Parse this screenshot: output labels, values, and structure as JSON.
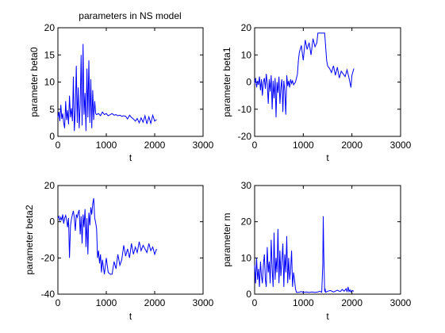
{
  "figure": {
    "title": "parameters in NS model",
    "line_color": "#0000ff",
    "axes_color": "#000000",
    "background": "#ffffff"
  },
  "chart_data": [
    {
      "type": "line",
      "title": "parameters in NS model",
      "xlabel": "t",
      "ylabel": "parameter beta0",
      "xlim": [
        0,
        3000
      ],
      "ylim": [
        0,
        20
      ],
      "xticks": [
        0,
        1000,
        2000,
        3000
      ],
      "yticks": [
        0,
        5,
        10,
        15,
        20
      ],
      "grid": false,
      "x": [
        0,
        20,
        40,
        60,
        80,
        100,
        120,
        140,
        160,
        180,
        200,
        220,
        240,
        260,
        280,
        300,
        320,
        340,
        360,
        380,
        400,
        420,
        440,
        460,
        480,
        500,
        520,
        540,
        560,
        580,
        600,
        620,
        640,
        660,
        680,
        700,
        720,
        740,
        760,
        780,
        800,
        840,
        880,
        920,
        960,
        1000,
        1040,
        1080,
        1120,
        1160,
        1200,
        1240,
        1280,
        1320,
        1360,
        1400,
        1440,
        1480,
        1520,
        1560,
        1600,
        1640,
        1680,
        1720,
        1760,
        1800,
        1840,
        1880,
        1920,
        1960,
        2000,
        2040
      ],
      "y": [
        3.5,
        4.5,
        2.8,
        5.8,
        3.2,
        4.2,
        2.5,
        1.5,
        6.5,
        3.0,
        4.8,
        2.2,
        7.5,
        3.5,
        5.2,
        2.8,
        11.0,
        1.0,
        5.0,
        13.0,
        2.5,
        9.0,
        1.5,
        6.0,
        15.0,
        2.0,
        17.0,
        4.0,
        8.0,
        1.0,
        12.5,
        3.5,
        14.0,
        2.5,
        10.5,
        1.5,
        8.5,
        3.0,
        6.5,
        4.2,
        4.0,
        4.2,
        3.8,
        4.5,
        4.0,
        4.2,
        3.8,
        4.0,
        4.2,
        3.9,
        4.0,
        3.8,
        3.9,
        3.7,
        3.8,
        3.7,
        3.2,
        3.9,
        3.5,
        3.2,
        2.8,
        3.3,
        2.5,
        3.4,
        2.6,
        3.8,
        2.3,
        3.6,
        2.4,
        3.9,
        2.8,
        3.1
      ]
    },
    {
      "type": "line",
      "xlabel": "t",
      "ylabel": "parameter beta1",
      "xlim": [
        0,
        3000
      ],
      "ylim": [
        -20,
        20
      ],
      "xticks": [
        0,
        1000,
        2000,
        3000
      ],
      "yticks": [
        -20,
        -10,
        0,
        10,
        20
      ],
      "grid": false,
      "x": [
        0,
        20,
        40,
        60,
        80,
        100,
        120,
        140,
        160,
        180,
        200,
        220,
        240,
        260,
        280,
        300,
        320,
        340,
        360,
        380,
        400,
        420,
        440,
        460,
        480,
        500,
        520,
        540,
        560,
        580,
        600,
        620,
        640,
        660,
        680,
        700,
        720,
        740,
        760,
        780,
        800,
        840,
        880,
        900,
        920,
        960,
        1000,
        1040,
        1080,
        1120,
        1160,
        1200,
        1240,
        1280,
        1300,
        1320,
        1360,
        1400,
        1440,
        1480,
        1500,
        1540,
        1580,
        1620,
        1660,
        1700,
        1740,
        1780,
        1820,
        1860,
        1900,
        1940,
        1980,
        2000,
        2040
      ],
      "y": [
        -0.5,
        1.5,
        -2.0,
        0.5,
        -1.0,
        2.0,
        -3.0,
        1.0,
        -5.0,
        0.0,
        1.5,
        -2.5,
        3.0,
        -0.5,
        -8.0,
        1.0,
        -3.5,
        2.5,
        -10.0,
        0.5,
        -6.0,
        1.5,
        -13.0,
        0.0,
        -4.0,
        2.0,
        -8.0,
        -2.0,
        1.0,
        -11.0,
        0.5,
        -3.0,
        -12.0,
        2.5,
        -1.5,
        0.5,
        -2.0,
        1.0,
        -0.5,
        0.5,
        -1.0,
        0.0,
        3.0,
        8.0,
        11.0,
        13.5,
        8.0,
        15.5,
        12.0,
        14.5,
        10.0,
        16.0,
        13.0,
        14.5,
        18.0,
        18.0,
        18.0,
        18.0,
        18.0,
        8.0,
        6.0,
        5.0,
        3.5,
        6.0,
        2.5,
        5.5,
        1.5,
        4.0,
        3.0,
        2.0,
        4.5,
        1.5,
        -2.0,
        2.5,
        5.0
      ]
    },
    {
      "type": "line",
      "xlabel": "t",
      "ylabel": "parameter beta2",
      "xlim": [
        0,
        3000
      ],
      "ylim": [
        -40,
        20
      ],
      "xticks": [
        0,
        1000,
        2000,
        3000
      ],
      "yticks": [
        -40,
        -20,
        0,
        20
      ],
      "grid": false,
      "x": [
        0,
        20,
        40,
        60,
        80,
        100,
        120,
        140,
        160,
        180,
        200,
        220,
        240,
        260,
        280,
        300,
        320,
        340,
        360,
        380,
        400,
        420,
        440,
        460,
        480,
        500,
        520,
        540,
        560,
        580,
        600,
        620,
        640,
        660,
        680,
        700,
        720,
        740,
        760,
        780,
        800,
        820,
        840,
        860,
        880,
        900,
        920,
        960,
        1000,
        1040,
        1080,
        1120,
        1160,
        1200,
        1240,
        1280,
        1320,
        1360,
        1400,
        1440,
        1480,
        1520,
        1560,
        1600,
        1640,
        1680,
        1720,
        1760,
        1800,
        1840,
        1880,
        1920,
        1960,
        2000,
        2040
      ],
      "y": [
        2.0,
        3.0,
        0.5,
        2.5,
        1.0,
        4.0,
        -1.0,
        2.0,
        3.5,
        1.0,
        -3.0,
        2.0,
        -20.0,
        -2.0,
        1.5,
        4.0,
        6.0,
        2.0,
        -5.0,
        4.0,
        2.5,
        5.0,
        6.5,
        -7.0,
        3.0,
        -12.0,
        4.0,
        -3.0,
        7.0,
        -14.0,
        2.0,
        -18.0,
        5.0,
        -2.0,
        8.0,
        4.0,
        10.0,
        13.0,
        2.0,
        -0.5,
        -4.0,
        -20.0,
        -16.0,
        -23.0,
        -18.0,
        -28.0,
        -21.0,
        -29.0,
        -20.0,
        -28.0,
        -29.0,
        -29.0,
        -22.0,
        -26.0,
        -18.0,
        -24.0,
        -21.0,
        -13.0,
        -19.0,
        -15.0,
        -20.0,
        -12.0,
        -18.0,
        -14.0,
        -17.0,
        -11.0,
        -16.0,
        -13.0,
        -15.0,
        -17.0,
        -12.0,
        -16.0,
        -14.0,
        -18.0,
        -15.0
      ]
    },
    {
      "type": "line",
      "xlabel": "t",
      "ylabel": "parameter m",
      "xlim": [
        0,
        3000
      ],
      "ylim": [
        0,
        30
      ],
      "xticks": [
        0,
        1000,
        2000,
        3000
      ],
      "yticks": [
        0,
        10,
        20,
        30
      ],
      "grid": false,
      "x": [
        0,
        20,
        40,
        60,
        80,
        100,
        120,
        140,
        160,
        180,
        200,
        220,
        240,
        260,
        280,
        300,
        320,
        340,
        360,
        380,
        400,
        420,
        440,
        460,
        480,
        500,
        520,
        540,
        560,
        580,
        600,
        620,
        640,
        660,
        680,
        700,
        720,
        740,
        760,
        780,
        800,
        820,
        840,
        860,
        900,
        960,
        1000,
        1060,
        1120,
        1180,
        1240,
        1300,
        1340,
        1380,
        1400,
        1410,
        1420,
        1440,
        1450,
        1460,
        1500,
        1560,
        1620,
        1700,
        1760,
        1800,
        1840,
        1880,
        1900,
        1920,
        1940,
        1960,
        1980,
        2000,
        2040
      ],
      "y": [
        8.0,
        3.0,
        10.0,
        4.0,
        7.0,
        2.0,
        9.0,
        5.0,
        3.0,
        8.0,
        11.0,
        4.0,
        2.0,
        13.0,
        6.0,
        9.0,
        3.0,
        15.0,
        7.0,
        2.0,
        17.0,
        4.0,
        10.0,
        6.0,
        18.0,
        3.0,
        12.0,
        5.0,
        9.0,
        14.0,
        2.0,
        11.0,
        6.0,
        16.0,
        3.0,
        10.0,
        4.0,
        7.0,
        12.0,
        2.0,
        6.0,
        4.0,
        1.5,
        0.5,
        0.5,
        0.7,
        0.5,
        0.6,
        0.5,
        0.6,
        0.5,
        0.6,
        0.8,
        0.5,
        8.0,
        21.5,
        12.0,
        0.7,
        1.5,
        0.5,
        0.8,
        1.0,
        0.6,
        1.1,
        0.7,
        1.3,
        0.8,
        1.5,
        0.6,
        2.0,
        0.7,
        1.2,
        0.6,
        1.0,
        0.8
      ]
    }
  ]
}
